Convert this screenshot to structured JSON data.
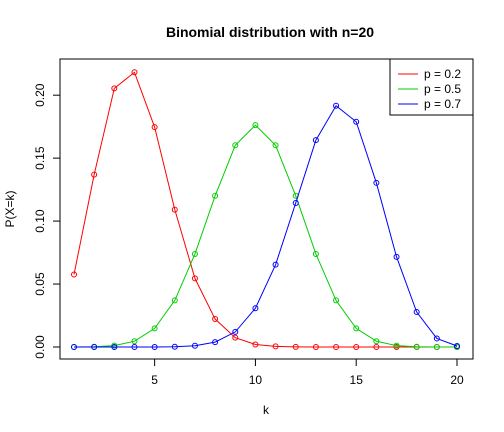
{
  "chart_data": {
    "type": "line",
    "title": "Binomial distribution with n=20",
    "xlabel": "k",
    "ylabel": "P(X=k)",
    "xlim": [
      1,
      20
    ],
    "ylim": [
      0,
      0.22
    ],
    "x_ticks": [
      5,
      10,
      15,
      20
    ],
    "y_ticks": [
      0.0,
      0.05,
      0.1,
      0.15,
      0.2
    ],
    "y_tick_labels": [
      "0.00",
      "0.05",
      "0.10",
      "0.15",
      "0.20"
    ],
    "legend_position": "top-right",
    "grid": false,
    "x": [
      1,
      2,
      3,
      4,
      5,
      6,
      7,
      8,
      9,
      10,
      11,
      12,
      13,
      14,
      15,
      16,
      17,
      18,
      19,
      20
    ],
    "series": [
      {
        "name": "p = 0.2",
        "color": "#ff0000",
        "values": [
          0.0576,
          0.1369,
          0.2054,
          0.2182,
          0.1746,
          0.1091,
          0.0545,
          0.0222,
          0.0074,
          0.002,
          0.0005,
          0.0001,
          0.0,
          0.0,
          0.0,
          0.0,
          0.0,
          0.0,
          0.0,
          0.0
        ]
      },
      {
        "name": "p = 0.5",
        "color": "#00cd00",
        "values": [
          0.0,
          0.0002,
          0.0011,
          0.0046,
          0.0148,
          0.037,
          0.0739,
          0.1201,
          0.1602,
          0.1762,
          0.1602,
          0.1201,
          0.0739,
          0.037,
          0.0148,
          0.0046,
          0.0011,
          0.0002,
          0.0,
          0.0
        ]
      },
      {
        "name": "p = 0.7",
        "color": "#0000ff",
        "values": [
          0.0,
          0.0,
          0.0,
          0.0,
          0.0,
          0.0002,
          0.001,
          0.0039,
          0.012,
          0.0308,
          0.0654,
          0.1144,
          0.1643,
          0.1916,
          0.1789,
          0.1304,
          0.0716,
          0.0278,
          0.0068,
          0.0008
        ]
      }
    ]
  }
}
